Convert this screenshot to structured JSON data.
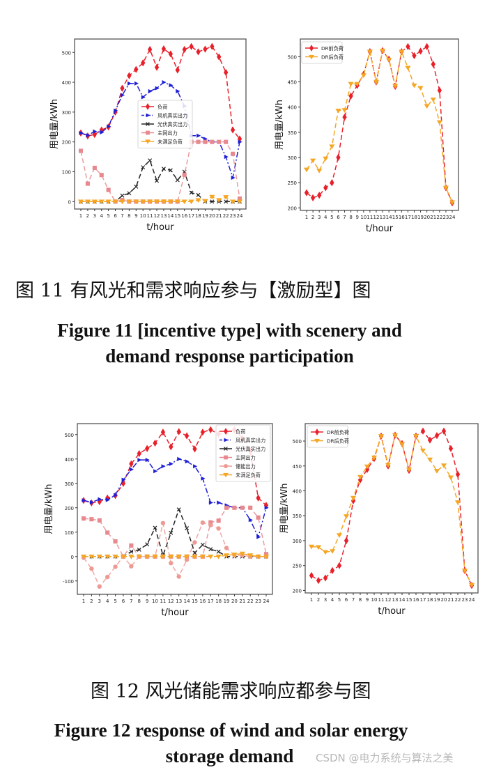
{
  "figure11": {
    "caption_cn": "图 11  有风光和需求响应参与【激励型】图",
    "caption_en_line1": "Figure 11 [incentive type] with scenery and",
    "caption_en_line2": "demand response participation"
  },
  "figure12": {
    "caption_cn": "图 12  风光储能需求响应都参与图",
    "caption_en_line1": "Figure 12 response of wind and solar energy",
    "caption_en_line2": "storage demand"
  },
  "watermark": "CSDN @电力系统与算法之美",
  "chart_data": [
    {
      "id": "fig11-left",
      "type": "line",
      "title": "",
      "xlabel": "t/hour",
      "ylabel": "用电量/kWh",
      "x": [
        1,
        2,
        3,
        4,
        5,
        6,
        7,
        8,
        9,
        10,
        11,
        12,
        13,
        14,
        15,
        16,
        17,
        18,
        19,
        20,
        21,
        22,
        23,
        24
      ],
      "ylim": [
        -25,
        545
      ],
      "yticks": [
        0,
        100,
        200,
        300,
        400,
        500
      ],
      "legend_position": "center",
      "grid": false,
      "series": [
        {
          "name": "负荷",
          "color": "#e8202a",
          "marker": "diamond",
          "dash": "dashed",
          "values": [
            230,
            220,
            225,
            240,
            250,
            300,
            380,
            422,
            443,
            465,
            510,
            450,
            512,
            495,
            441,
            510,
            520,
            502,
            511,
            520,
            485,
            433,
            240,
            210
          ]
        },
        {
          "name": "风机真实出力",
          "color": "#1f1fd6",
          "marker": "tri-right",
          "dash": "dashdot",
          "values": [
            230,
            222,
            235,
            232,
            252,
            305,
            357,
            396,
            396,
            350,
            370,
            380,
            400,
            390,
            370,
            320,
            221,
            221,
            210,
            200,
            200,
            150,
            80,
            200
          ]
        },
        {
          "name": "光伏真实出力",
          "color": "#222222",
          "marker": "x",
          "dash": "dashed",
          "values": [
            0,
            0,
            0,
            0,
            0,
            0,
            20,
            28,
            50,
            115,
            138,
            70,
            110,
            105,
            72,
            100,
            30,
            22,
            0,
            0,
            0,
            0,
            0,
            0
          ]
        },
        {
          "name": "主网出力",
          "color": "#e8898f",
          "marker": "square",
          "dash": "dashed",
          "values": [
            170,
            60,
            113,
            89,
            39,
            0,
            5,
            0,
            0,
            0,
            0,
            0,
            0,
            0,
            0,
            90,
            200,
            200,
            200,
            200,
            200,
            200,
            160,
            10
          ]
        },
        {
          "name": "未满足负荷",
          "color": "#f5a623",
          "marker": "tri-down",
          "dash": "dashed",
          "values": [
            0,
            0,
            0,
            0,
            0,
            0,
            0,
            0,
            0,
            0,
            0,
            0,
            0,
            0,
            0,
            0,
            0,
            5,
            2,
            16,
            5,
            15,
            0,
            0
          ]
        }
      ]
    },
    {
      "id": "fig11-right",
      "type": "line",
      "title": "",
      "xlabel": "t/hour",
      "ylabel": "用电量/kWh",
      "x": [
        1,
        2,
        3,
        4,
        5,
        6,
        7,
        8,
        9,
        10,
        11,
        12,
        13,
        14,
        15,
        16,
        17,
        18,
        19,
        20,
        21,
        22,
        23,
        24
      ],
      "ylim": [
        195,
        535
      ],
      "yticks": [
        200,
        250,
        300,
        350,
        400,
        450,
        500
      ],
      "legend_position": "top-left",
      "grid": false,
      "series": [
        {
          "name": "DR前负荷",
          "color": "#e8202a",
          "marker": "diamond",
          "dash": "dashed",
          "values": [
            230,
            220,
            225,
            240,
            250,
            300,
            380,
            422,
            443,
            465,
            510,
            450,
            512,
            495,
            441,
            510,
            520,
            502,
            511,
            520,
            485,
            433,
            240,
            210
          ]
        },
        {
          "name": "DR后负荷",
          "color": "#f5a623",
          "marker": "tri-down",
          "dash": "dashed",
          "values": [
            276,
            294,
            274,
            298,
            322,
            393,
            394,
            446,
            446,
            463,
            510,
            450,
            512,
            494,
            442,
            510,
            478,
            443,
            438,
            402,
            415,
            370,
            240,
            211
          ]
        }
      ]
    },
    {
      "id": "fig12-left",
      "type": "line",
      "title": "",
      "xlabel": "t/hour",
      "ylabel": "用电量/kWh",
      "x": [
        1,
        2,
        3,
        4,
        5,
        6,
        7,
        8,
        9,
        10,
        11,
        12,
        13,
        14,
        15,
        16,
        17,
        18,
        19,
        20,
        21,
        22,
        23,
        24
      ],
      "ylim": [
        -155,
        545
      ],
      "yticks": [
        -100,
        0,
        100,
        200,
        300,
        400,
        500
      ],
      "legend_position": "top-right",
      "grid": false,
      "series": [
        {
          "name": "负荷",
          "color": "#e8202a",
          "marker": "diamond",
          "dash": "dashed",
          "values": [
            230,
            220,
            225,
            240,
            250,
            300,
            380,
            422,
            443,
            465,
            510,
            450,
            512,
            495,
            441,
            510,
            520,
            502,
            511,
            520,
            485,
            433,
            240,
            210
          ]
        },
        {
          "name": "风机真实出力",
          "color": "#1f1fd6",
          "marker": "tri-right",
          "dash": "dashdot",
          "values": [
            230,
            222,
            235,
            232,
            252,
            315,
            357,
            396,
            396,
            350,
            370,
            380,
            400,
            390,
            370,
            320,
            221,
            221,
            210,
            200,
            200,
            150,
            80,
            200
          ]
        },
        {
          "name": "光伏真实出力",
          "color": "#222222",
          "marker": "x",
          "dash": "dashed",
          "values": [
            0,
            0,
            0,
            0,
            0,
            0,
            20,
            28,
            50,
            118,
            5,
            97,
            193,
            116,
            15,
            48,
            30,
            20,
            0,
            0,
            0,
            0,
            0,
            0
          ]
        },
        {
          "name": "主网出力",
          "color": "#e8898f",
          "marker": "square",
          "dash": "dashed",
          "values": [
            156,
            153,
            148,
            98,
            62,
            0,
            45,
            0,
            0,
            0,
            0,
            0,
            0,
            0,
            0,
            0,
            140,
            147,
            200,
            200,
            200,
            200,
            160,
            10
          ]
        },
        {
          "name": "储能出力",
          "color": "#ee9a94",
          "marker": "circle",
          "dash": "dashed",
          "values": [
            -5,
            -50,
            -123,
            -84,
            -42,
            0,
            -40,
            0,
            0,
            0,
            137,
            -27,
            -82,
            -13,
            58,
            139,
            129,
            115,
            35,
            5,
            5,
            0,
            0,
            0
          ]
        },
        {
          "name": "未满足负荷",
          "color": "#f5a623",
          "marker": "tri-down",
          "dash": "dashed",
          "values": [
            0,
            0,
            0,
            0,
            0,
            0,
            0,
            0,
            0,
            0,
            0,
            0,
            0,
            0,
            0,
            0,
            0,
            0,
            5,
            8,
            12,
            5,
            0,
            0
          ]
        }
      ]
    },
    {
      "id": "fig12-right",
      "type": "line",
      "title": "",
      "xlabel": "t/hour",
      "ylabel": "用电量/kWh",
      "x": [
        1,
        2,
        3,
        4,
        5,
        6,
        7,
        8,
        9,
        10,
        11,
        12,
        13,
        14,
        15,
        16,
        17,
        18,
        19,
        20,
        21,
        22,
        23,
        24
      ],
      "ylim": [
        195,
        535
      ],
      "yticks": [
        200,
        250,
        300,
        350,
        400,
        450,
        500
      ],
      "legend_position": "top-left",
      "grid": false,
      "series": [
        {
          "name": "DR前负荷",
          "color": "#e8202a",
          "marker": "diamond",
          "dash": "dashed",
          "values": [
            230,
            220,
            225,
            240,
            250,
            300,
            380,
            422,
            443,
            465,
            510,
            450,
            512,
            495,
            441,
            510,
            520,
            502,
            511,
            520,
            485,
            433,
            240,
            210
          ]
        },
        {
          "name": "DR后负荷",
          "color": "#f5a623",
          "marker": "tri-down",
          "dash": "dashed",
          "values": [
            288,
            287,
            277,
            279,
            311,
            349,
            386,
            428,
            449,
            467,
            510,
            452,
            512,
            494,
            443,
            510,
            481,
            463,
            440,
            451,
            427,
            377,
            240,
            211
          ]
        }
      ]
    }
  ]
}
